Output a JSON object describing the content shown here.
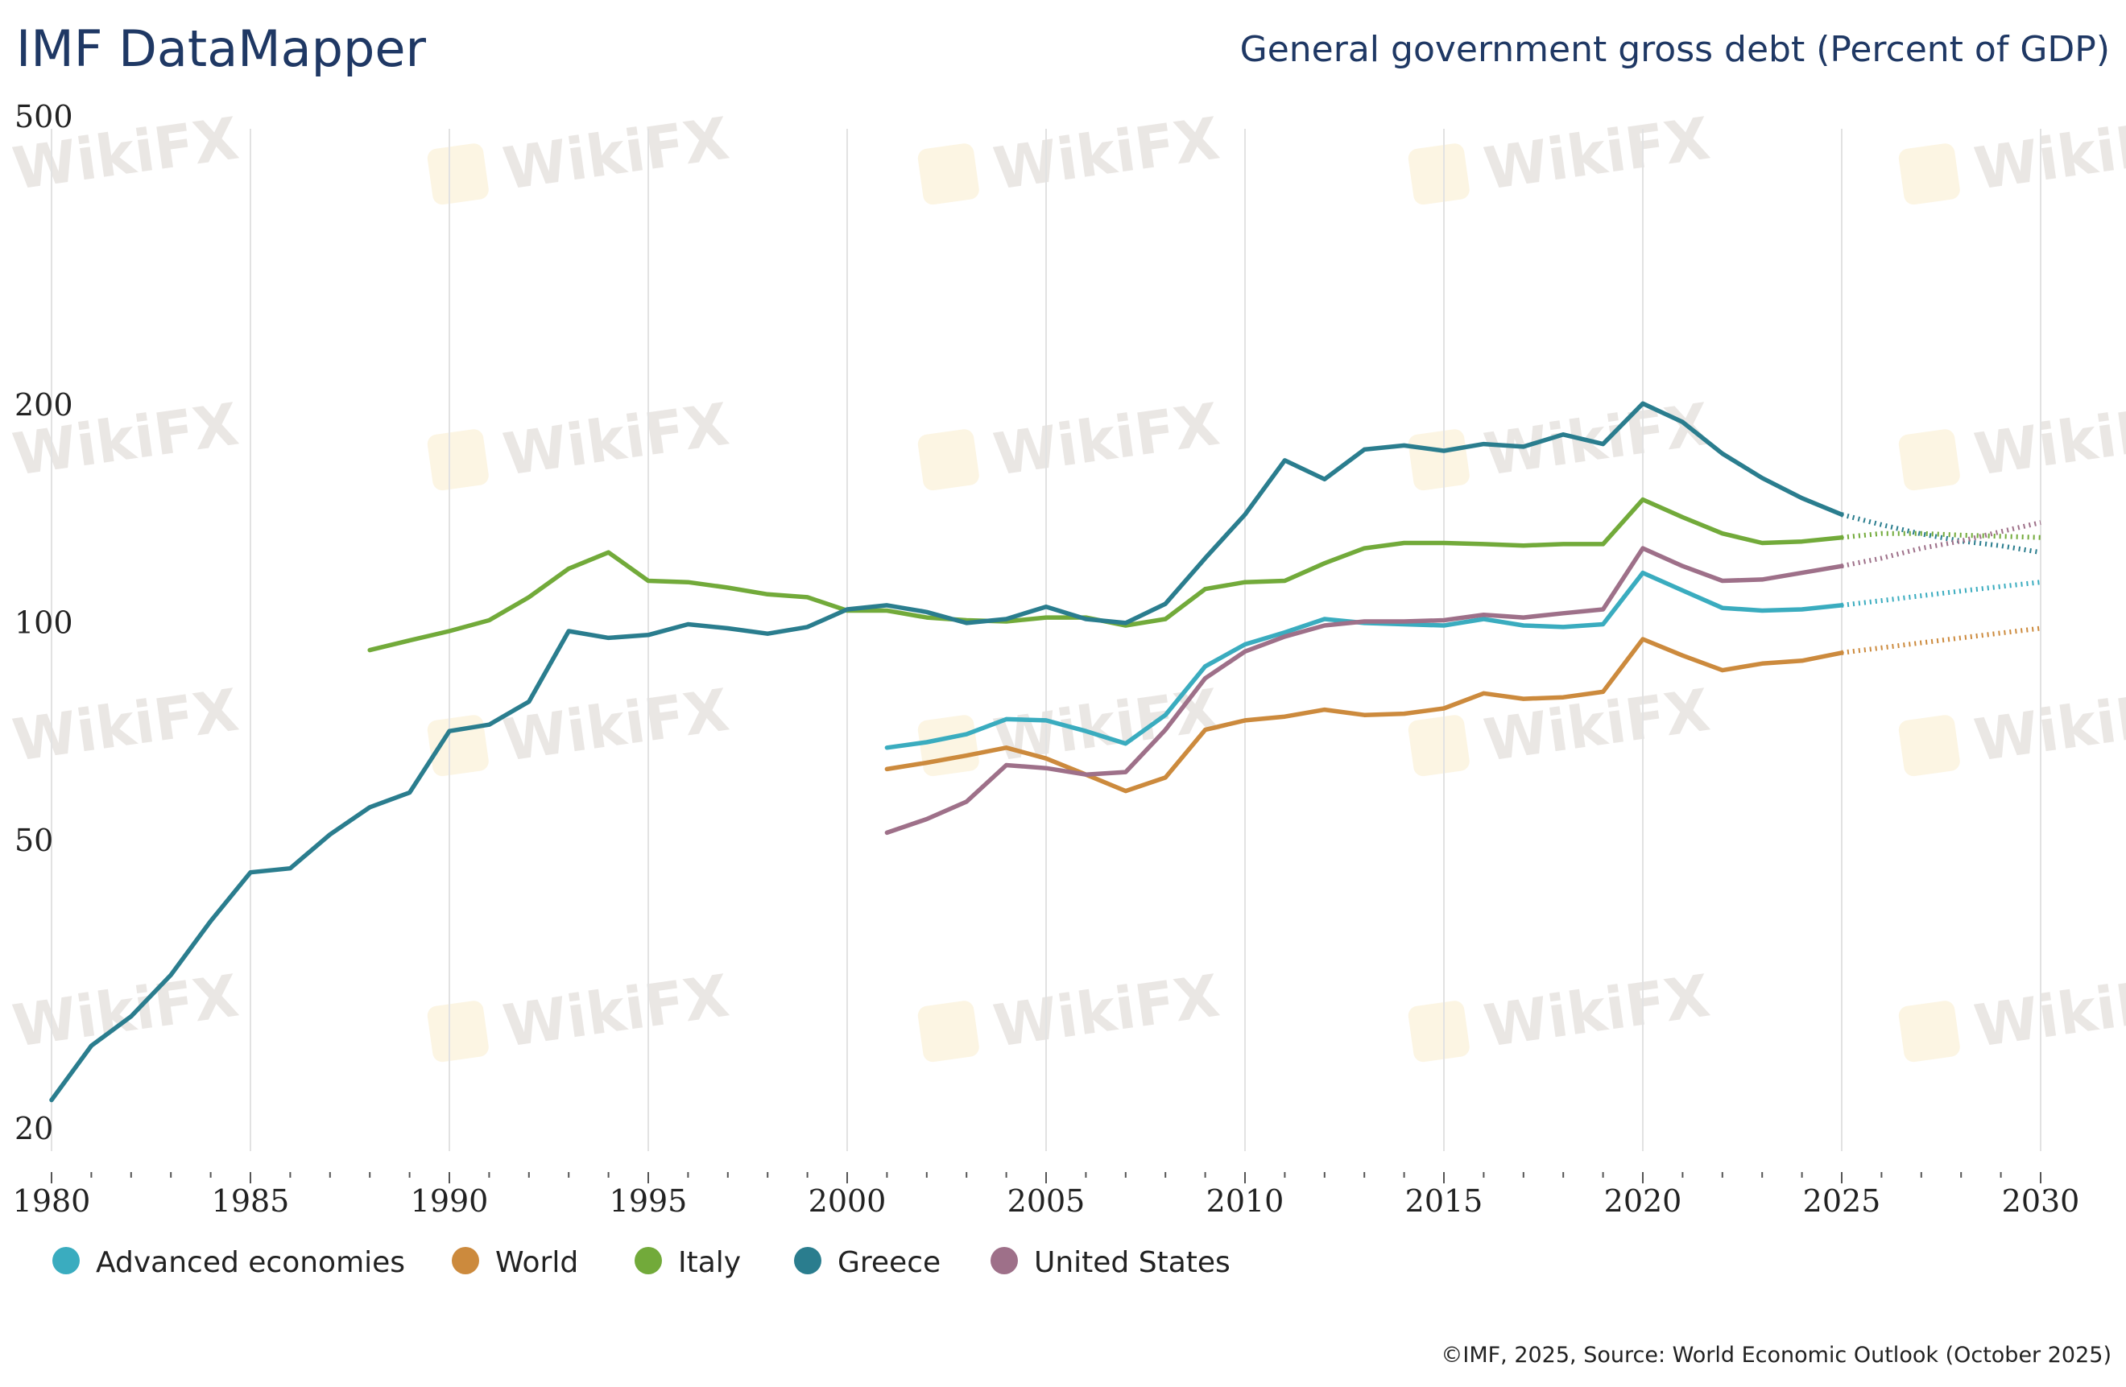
{
  "header": {
    "app_title": "IMF DataMapper",
    "chart_title": "General government gross debt (Percent of GDP)"
  },
  "footer": {
    "source": "©IMF, 2025, Source: World Economic Outlook (October 2025)"
  },
  "watermark": "WikiFX",
  "chart_data": {
    "type": "line",
    "title": "General government gross debt (Percent of GDP)",
    "xlabel": "",
    "ylabel": "",
    "y_scale": "log",
    "ylim": [
      20,
      500
    ],
    "xlim": [
      1980,
      2030
    ],
    "y_ticks": [
      20,
      50,
      100,
      200,
      500
    ],
    "x_ticks": [
      1980,
      1985,
      1990,
      1995,
      2000,
      2005,
      2010,
      2015,
      2020,
      2025,
      2030
    ],
    "grid": "vertical",
    "legend_position": "bottom-left",
    "projection_from": 2025,
    "series": [
      {
        "name": "Advanced economies",
        "color": "#3aacbf",
        "start_year": 2001,
        "values": [
          68.4,
          69.6,
          71.4,
          74.9,
          74.6,
          72.1,
          69.3,
          75.9,
          88.6,
          95.0,
          98.7,
          103.0,
          101.7,
          101.3,
          100.9,
          103.0,
          100.9,
          100.4,
          101.3,
          119.3,
          112.8,
          106.7,
          105.8,
          106.2,
          107.6,
          109.2,
          110.9,
          112.6,
          114.2,
          115.8
        ]
      },
      {
        "name": "World",
        "color": "#cc8a3d",
        "start_year": 2001,
        "values": [
          63.9,
          65.2,
          66.7,
          68.4,
          66.1,
          62.8,
          59.6,
          62.2,
          72.4,
          74.6,
          75.5,
          77.2,
          75.9,
          76.2,
          77.5,
          81.3,
          79.9,
          80.3,
          81.7,
          96.6,
          91.7,
          87.5,
          89.4,
          90.2,
          92.5,
          94.0,
          95.5,
          97.0,
          98.5,
          100.0
        ]
      },
      {
        "name": "Italy",
        "color": "#72aa3a",
        "start_year": 1988,
        "values": [
          93.3,
          96.2,
          99.1,
          102.6,
          110.4,
          120.9,
          127.3,
          116.3,
          115.8,
          113.8,
          111.4,
          110.4,
          105.8,
          105.8,
          103.5,
          102.6,
          102.2,
          103.5,
          103.5,
          100.9,
          103.0,
          113.3,
          115.8,
          116.3,
          123.0,
          129.0,
          131.2,
          131.2,
          130.7,
          130.1,
          130.7,
          130.7,
          150.6,
          142.4,
          135.2,
          131.2,
          131.8,
          133.5,
          135.2,
          135.2,
          134.5,
          134.0,
          133.5
        ]
      },
      {
        "name": "Greece",
        "color": "#2a7d8e",
        "start_year": 1980,
        "values": [
          22.3,
          26.5,
          29.1,
          33.2,
          39.4,
          46.0,
          46.6,
          51.9,
          56.6,
          59.3,
          72.1,
          73.6,
          79.2,
          99.1,
          97.0,
          97.9,
          101.3,
          100.0,
          98.3,
          100.4,
          106.2,
          107.6,
          105.3,
          101.7,
          103.0,
          107.1,
          103.0,
          101.7,
          108.1,
          125.0,
          143.6,
          170.6,
          160.7,
          176.6,
          178.9,
          175.9,
          179.7,
          178.2,
          185.2,
          179.7,
          204.4,
          192.7,
          174.3,
          161.3,
          151.3,
          143.6,
          139.0,
          135.0,
          132.0,
          130.0,
          127.3
        ]
      },
      {
        "name": "United States",
        "color": "#9e7089",
        "start_year": 2001,
        "values": [
          52.2,
          54.5,
          57.6,
          64.7,
          64.1,
          62.8,
          63.3,
          72.4,
          85.3,
          92.9,
          97.4,
          100.9,
          102.2,
          102.2,
          102.6,
          104.4,
          103.5,
          104.9,
          106.2,
          129.0,
          121.9,
          116.3,
          116.8,
          119.3,
          121.9,
          125.0,
          129.0,
          132.0,
          136.0,
          140.0
        ]
      }
    ]
  }
}
